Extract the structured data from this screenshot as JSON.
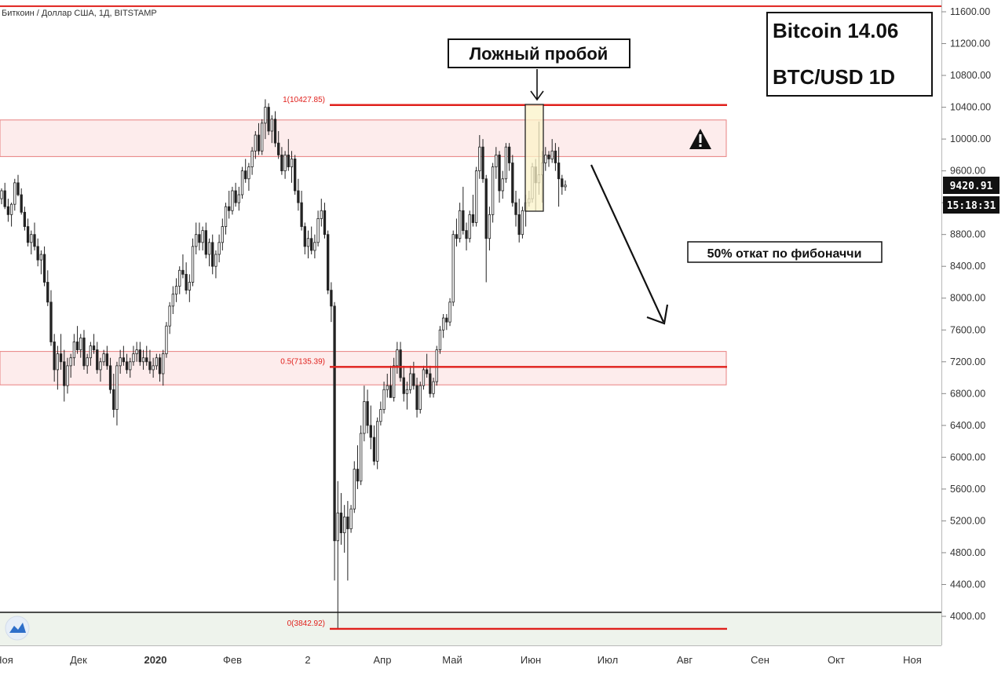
{
  "header": {
    "symbol_title": "Биткоин / Доллар США, 1Д, BITSTAMP"
  },
  "info_box": {
    "line1": "Bitcoin 14.06",
    "line2": "BTC/USD 1D"
  },
  "annotations": {
    "false_breakout": "Ложный пробой",
    "fib_retrace": "50% откат по фибоначчи",
    "warning_icon": "warning-triangle"
  },
  "price_labels": {
    "last_price": "9420.91",
    "countdown": "15:18:31"
  },
  "colors": {
    "red_line": "#e0201c",
    "zone_fill": "#fdecec",
    "zone_border": "#e88080",
    "highlight_fill": "#fbf3c8",
    "highlight_border": "#222222",
    "candle": "#222222",
    "bottom_band": "#eef3ec"
  },
  "chart_data": {
    "type": "candlestick",
    "y_axis_ticks": [
      4000,
      4400,
      4800,
      5200,
      5600,
      6000,
      6400,
      6800,
      7200,
      7600,
      8000,
      8400,
      8800,
      9200,
      9600,
      10000,
      10400,
      10800,
      11200,
      11600
    ],
    "y_axis_tick_labels": [
      "4000.00",
      "4400.00",
      "4800.00",
      "5200.00",
      "5600.00",
      "6000.00",
      "6400.00",
      "6800.00",
      "7200.00",
      "7600.00",
      "8000.00",
      "8400.00",
      "8800.00",
      "9200.00",
      "9600.00",
      "10000.00",
      "10400.00",
      "10800.00",
      "11200.00",
      "11600.00"
    ],
    "ylim": [
      3580,
      11770
    ],
    "x_axis_labels": [
      "Ноя",
      "Дек",
      "2020",
      "Фев",
      "2",
      "Апр",
      "Май",
      "Июн",
      "Июл",
      "Авг",
      "Сен",
      "Окт",
      "Ноя"
    ],
    "x_axis_label_bold": [
      false,
      false,
      true,
      false,
      false,
      false,
      false,
      false,
      false,
      false,
      false,
      false,
      false
    ],
    "fib_levels": [
      {
        "label": "1(10427.85)",
        "value": 10427.85
      },
      {
        "label": "0.5(7135.39)",
        "value": 7135.39
      },
      {
        "label": "0(3842.92)",
        "value": 3842.92
      }
    ],
    "resistance_line": 11670,
    "zones": [
      {
        "top": 10240,
        "bottom": 9780
      },
      {
        "top": 7330,
        "bottom": 6910
      }
    ],
    "bottom_band_top": 4050,
    "candles": [
      [
        9250,
        9380,
        9180,
        9350
      ],
      [
        9350,
        9450,
        9120,
        9150
      ],
      [
        9150,
        9250,
        8960,
        9050
      ],
      [
        9050,
        9200,
        8900,
        9180
      ],
      [
        9180,
        9500,
        9100,
        9450
      ],
      [
        9450,
        9550,
        9280,
        9300
      ],
      [
        9300,
        9380,
        9050,
        9080
      ],
      [
        9080,
        9150,
        8850,
        8900
      ],
      [
        8900,
        9000,
        8650,
        8700
      ],
      [
        8700,
        8850,
        8550,
        8800
      ],
      [
        8800,
        8950,
        8600,
        8650
      ],
      [
        8650,
        8750,
        8400,
        8480
      ],
      [
        8480,
        8600,
        8300,
        8550
      ],
      [
        8550,
        8650,
        8150,
        8200
      ],
      [
        8200,
        8350,
        7900,
        7950
      ],
      [
        7950,
        8100,
        7400,
        7450
      ],
      [
        7450,
        7550,
        6950,
        7100
      ],
      [
        7100,
        7400,
        6850,
        7300
      ],
      [
        7300,
        7550,
        7100,
        7200
      ],
      [
        7200,
        7350,
        6700,
        6900
      ],
      [
        6900,
        7250,
        6800,
        7150
      ],
      [
        7150,
        7300,
        7000,
        7250
      ],
      [
        7250,
        7550,
        7150,
        7450
      ],
      [
        7450,
        7650,
        7300,
        7350
      ],
      [
        7350,
        7550,
        7250,
        7500
      ],
      [
        7500,
        7600,
        7100,
        7150
      ],
      [
        7150,
        7300,
        7050,
        7250
      ],
      [
        7250,
        7450,
        7150,
        7400
      ],
      [
        7400,
        7550,
        7300,
        7350
      ],
      [
        7350,
        7450,
        7050,
        7100
      ],
      [
        7100,
        7250,
        6950,
        7200
      ],
      [
        7200,
        7350,
        7150,
        7300
      ],
      [
        7300,
        7400,
        7100,
        7150
      ],
      [
        7150,
        7250,
        6800,
        6850
      ],
      [
        6850,
        7050,
        6500,
        6600
      ],
      [
        6600,
        7200,
        6400,
        7150
      ],
      [
        7150,
        7350,
        7050,
        7250
      ],
      [
        7250,
        7400,
        7150,
        7200
      ],
      [
        7200,
        7300,
        7050,
        7100
      ],
      [
        7100,
        7250,
        7000,
        7200
      ],
      [
        7200,
        7400,
        7150,
        7300
      ],
      [
        7300,
        7450,
        7200,
        7350
      ],
      [
        7350,
        7450,
        7150,
        7200
      ],
      [
        7200,
        7350,
        7100,
        7250
      ],
      [
        7250,
        7400,
        7150,
        7200
      ],
      [
        7200,
        7350,
        7050,
        7100
      ],
      [
        7100,
        7250,
        7000,
        7150
      ],
      [
        7150,
        7300,
        7100,
        7250
      ],
      [
        7250,
        7300,
        6950,
        7050
      ],
      [
        7050,
        7350,
        6900,
        7300
      ],
      [
        7300,
        7700,
        7250,
        7650
      ],
      [
        7650,
        7950,
        7550,
        7900
      ],
      [
        7900,
        8150,
        7800,
        8050
      ],
      [
        8050,
        8250,
        7950,
        8150
      ],
      [
        8150,
        8400,
        8050,
        8350
      ],
      [
        8350,
        8550,
        8250,
        8300
      ],
      [
        8300,
        8450,
        8050,
        8100
      ],
      [
        8100,
        8300,
        7950,
        8200
      ],
      [
        8200,
        8750,
        8150,
        8650
      ],
      [
        8650,
        8950,
        8550,
        8800
      ],
      [
        8800,
        8950,
        8600,
        8700
      ],
      [
        8700,
        8900,
        8600,
        8850
      ],
      [
        8850,
        8950,
        8500,
        8550
      ],
      [
        8550,
        8750,
        8400,
        8700
      ],
      [
        8700,
        8800,
        8300,
        8400
      ],
      [
        8400,
        8600,
        8250,
        8550
      ],
      [
        8550,
        8800,
        8450,
        8700
      ],
      [
        8700,
        9000,
        8600,
        8900
      ],
      [
        8900,
        9200,
        8800,
        9150
      ],
      [
        9150,
        9350,
        9000,
        9100
      ],
      [
        9100,
        9400,
        9050,
        9350
      ],
      [
        9350,
        9450,
        9150,
        9200
      ],
      [
        9200,
        9400,
        9100,
        9300
      ],
      [
        9300,
        9650,
        9250,
        9600
      ],
      [
        9600,
        9750,
        9450,
        9500
      ],
      [
        9500,
        9700,
        9350,
        9650
      ],
      [
        9650,
        9900,
        9550,
        9850
      ],
      [
        9850,
        10100,
        9750,
        10050
      ],
      [
        10050,
        10200,
        9800,
        9850
      ],
      [
        9850,
        10250,
        9800,
        10200
      ],
      [
        10200,
        10500,
        10000,
        10400
      ],
      [
        10400,
        10450,
        10050,
        10100
      ],
      [
        10100,
        10300,
        9950,
        10250
      ],
      [
        10250,
        10350,
        9900,
        9950
      ],
      [
        9950,
        10100,
        9750,
        9800
      ],
      [
        9800,
        9900,
        9550,
        9600
      ],
      [
        9600,
        9850,
        9500,
        9800
      ],
      [
        9800,
        10000,
        9600,
        9650
      ],
      [
        9650,
        9850,
        9450,
        9750
      ],
      [
        9750,
        9800,
        9300,
        9350
      ],
      [
        9350,
        9500,
        9100,
        9200
      ],
      [
        9200,
        9350,
        8850,
        8900
      ],
      [
        8900,
        8950,
        8550,
        8650
      ],
      [
        8650,
        8850,
        8500,
        8750
      ],
      [
        8750,
        8900,
        8550,
        8600
      ],
      [
        8600,
        8800,
        8500,
        8700
      ],
      [
        8700,
        9100,
        8650,
        9000
      ],
      [
        9000,
        9250,
        8900,
        9100
      ],
      [
        9100,
        9200,
        8750,
        8800
      ],
      [
        8800,
        8850,
        8050,
        8100
      ],
      [
        8100,
        8200,
        7700,
        7900
      ],
      [
        7900,
        7950,
        4450,
        4950
      ],
      [
        4950,
        5700,
        3850,
        5300
      ],
      [
        5300,
        5550,
        4900,
        5050
      ],
      [
        5050,
        5400,
        4800,
        5250
      ],
      [
        5250,
        5450,
        4450,
        5100
      ],
      [
        5100,
        5400,
        5050,
        5350
      ],
      [
        5350,
        5950,
        5300,
        5850
      ],
      [
        5850,
        6150,
        5600,
        5700
      ],
      [
        5700,
        6400,
        5650,
        6300
      ],
      [
        6300,
        6900,
        6200,
        6700
      ],
      [
        6700,
        6850,
        6300,
        6400
      ],
      [
        6400,
        6650,
        6100,
        6250
      ],
      [
        6250,
        6400,
        5900,
        5950
      ],
      [
        5950,
        6500,
        5850,
        6450
      ],
      [
        6450,
        6700,
        6400,
        6600
      ],
      [
        6600,
        6950,
        6550,
        6850
      ],
      [
        6850,
        7050,
        6750,
        6900
      ],
      [
        6900,
        7150,
        6800,
        6750
      ],
      [
        6750,
        7250,
        6700,
        7150
      ],
      [
        7150,
        7450,
        7050,
        7350
      ],
      [
        7350,
        7450,
        6950,
        7000
      ],
      [
        7000,
        7150,
        6700,
        6800
      ],
      [
        6800,
        6950,
        6600,
        6850
      ],
      [
        6850,
        7150,
        6800,
        7050
      ],
      [
        7050,
        7200,
        6850,
        6900
      ],
      [
        6900,
        7000,
        6500,
        6600
      ],
      [
        6600,
        6950,
        6550,
        6900
      ],
      [
        6900,
        7150,
        6850,
        7100
      ],
      [
        7100,
        7300,
        7000,
        7050
      ],
      [
        7050,
        7150,
        6750,
        6800
      ],
      [
        6800,
        7000,
        6750,
        6950
      ],
      [
        6950,
        7400,
        6900,
        7350
      ],
      [
        7350,
        7650,
        7300,
        7600
      ],
      [
        7600,
        7800,
        7500,
        7750
      ],
      [
        7750,
        7800,
        7600,
        7700
      ],
      [
        7700,
        8000,
        7650,
        7950
      ],
      [
        7950,
        8850,
        7900,
        8800
      ],
      [
        8800,
        9000,
        8650,
        8750
      ],
      [
        8750,
        9200,
        8700,
        9100
      ],
      [
        9100,
        9400,
        8800,
        8850
      ],
      [
        8850,
        8950,
        8600,
        8750
      ],
      [
        8750,
        9100,
        8700,
        9050
      ],
      [
        9050,
        9300,
        8900,
        8950
      ],
      [
        8950,
        9650,
        8900,
        9600
      ],
      [
        9600,
        10050,
        9500,
        9900
      ],
      [
        9900,
        10000,
        9450,
        9500
      ],
      [
        9500,
        9550,
        8200,
        8750
      ],
      [
        8750,
        9150,
        8600,
        9050
      ],
      [
        9050,
        9700,
        8950,
        9650
      ],
      [
        9650,
        9900,
        9500,
        9800
      ],
      [
        9800,
        9850,
        9200,
        9350
      ],
      [
        9350,
        9600,
        9250,
        9500
      ],
      [
        9500,
        9950,
        9450,
        9900
      ],
      [
        9900,
        9950,
        9600,
        9700
      ],
      [
        9700,
        9800,
        9150,
        9200
      ],
      [
        9200,
        9350,
        8900,
        9050
      ],
      [
        9050,
        9250,
        8700,
        8800
      ],
      [
        8800,
        9150,
        8750,
        9100
      ],
      [
        9100,
        9300,
        8900,
        9200
      ],
      [
        9200,
        9350,
        9150,
        9250
      ],
      [
        9250,
        9700,
        9200,
        9650
      ],
      [
        9650,
        9750,
        9100,
        9450
      ],
      [
        9450,
        10220,
        9300,
        9550
      ],
      [
        9550,
        9850,
        9200,
        9700
      ],
      [
        9700,
        9900,
        9600,
        9800
      ],
      [
        9800,
        9850,
        9650,
        9750
      ],
      [
        9750,
        10000,
        9700,
        9850
      ],
      [
        9850,
        9950,
        9600,
        9700
      ],
      [
        9700,
        9900,
        9150,
        9500
      ],
      [
        9500,
        9550,
        9300,
        9400
      ],
      [
        9400,
        9480,
        9350,
        9420
      ]
    ]
  }
}
